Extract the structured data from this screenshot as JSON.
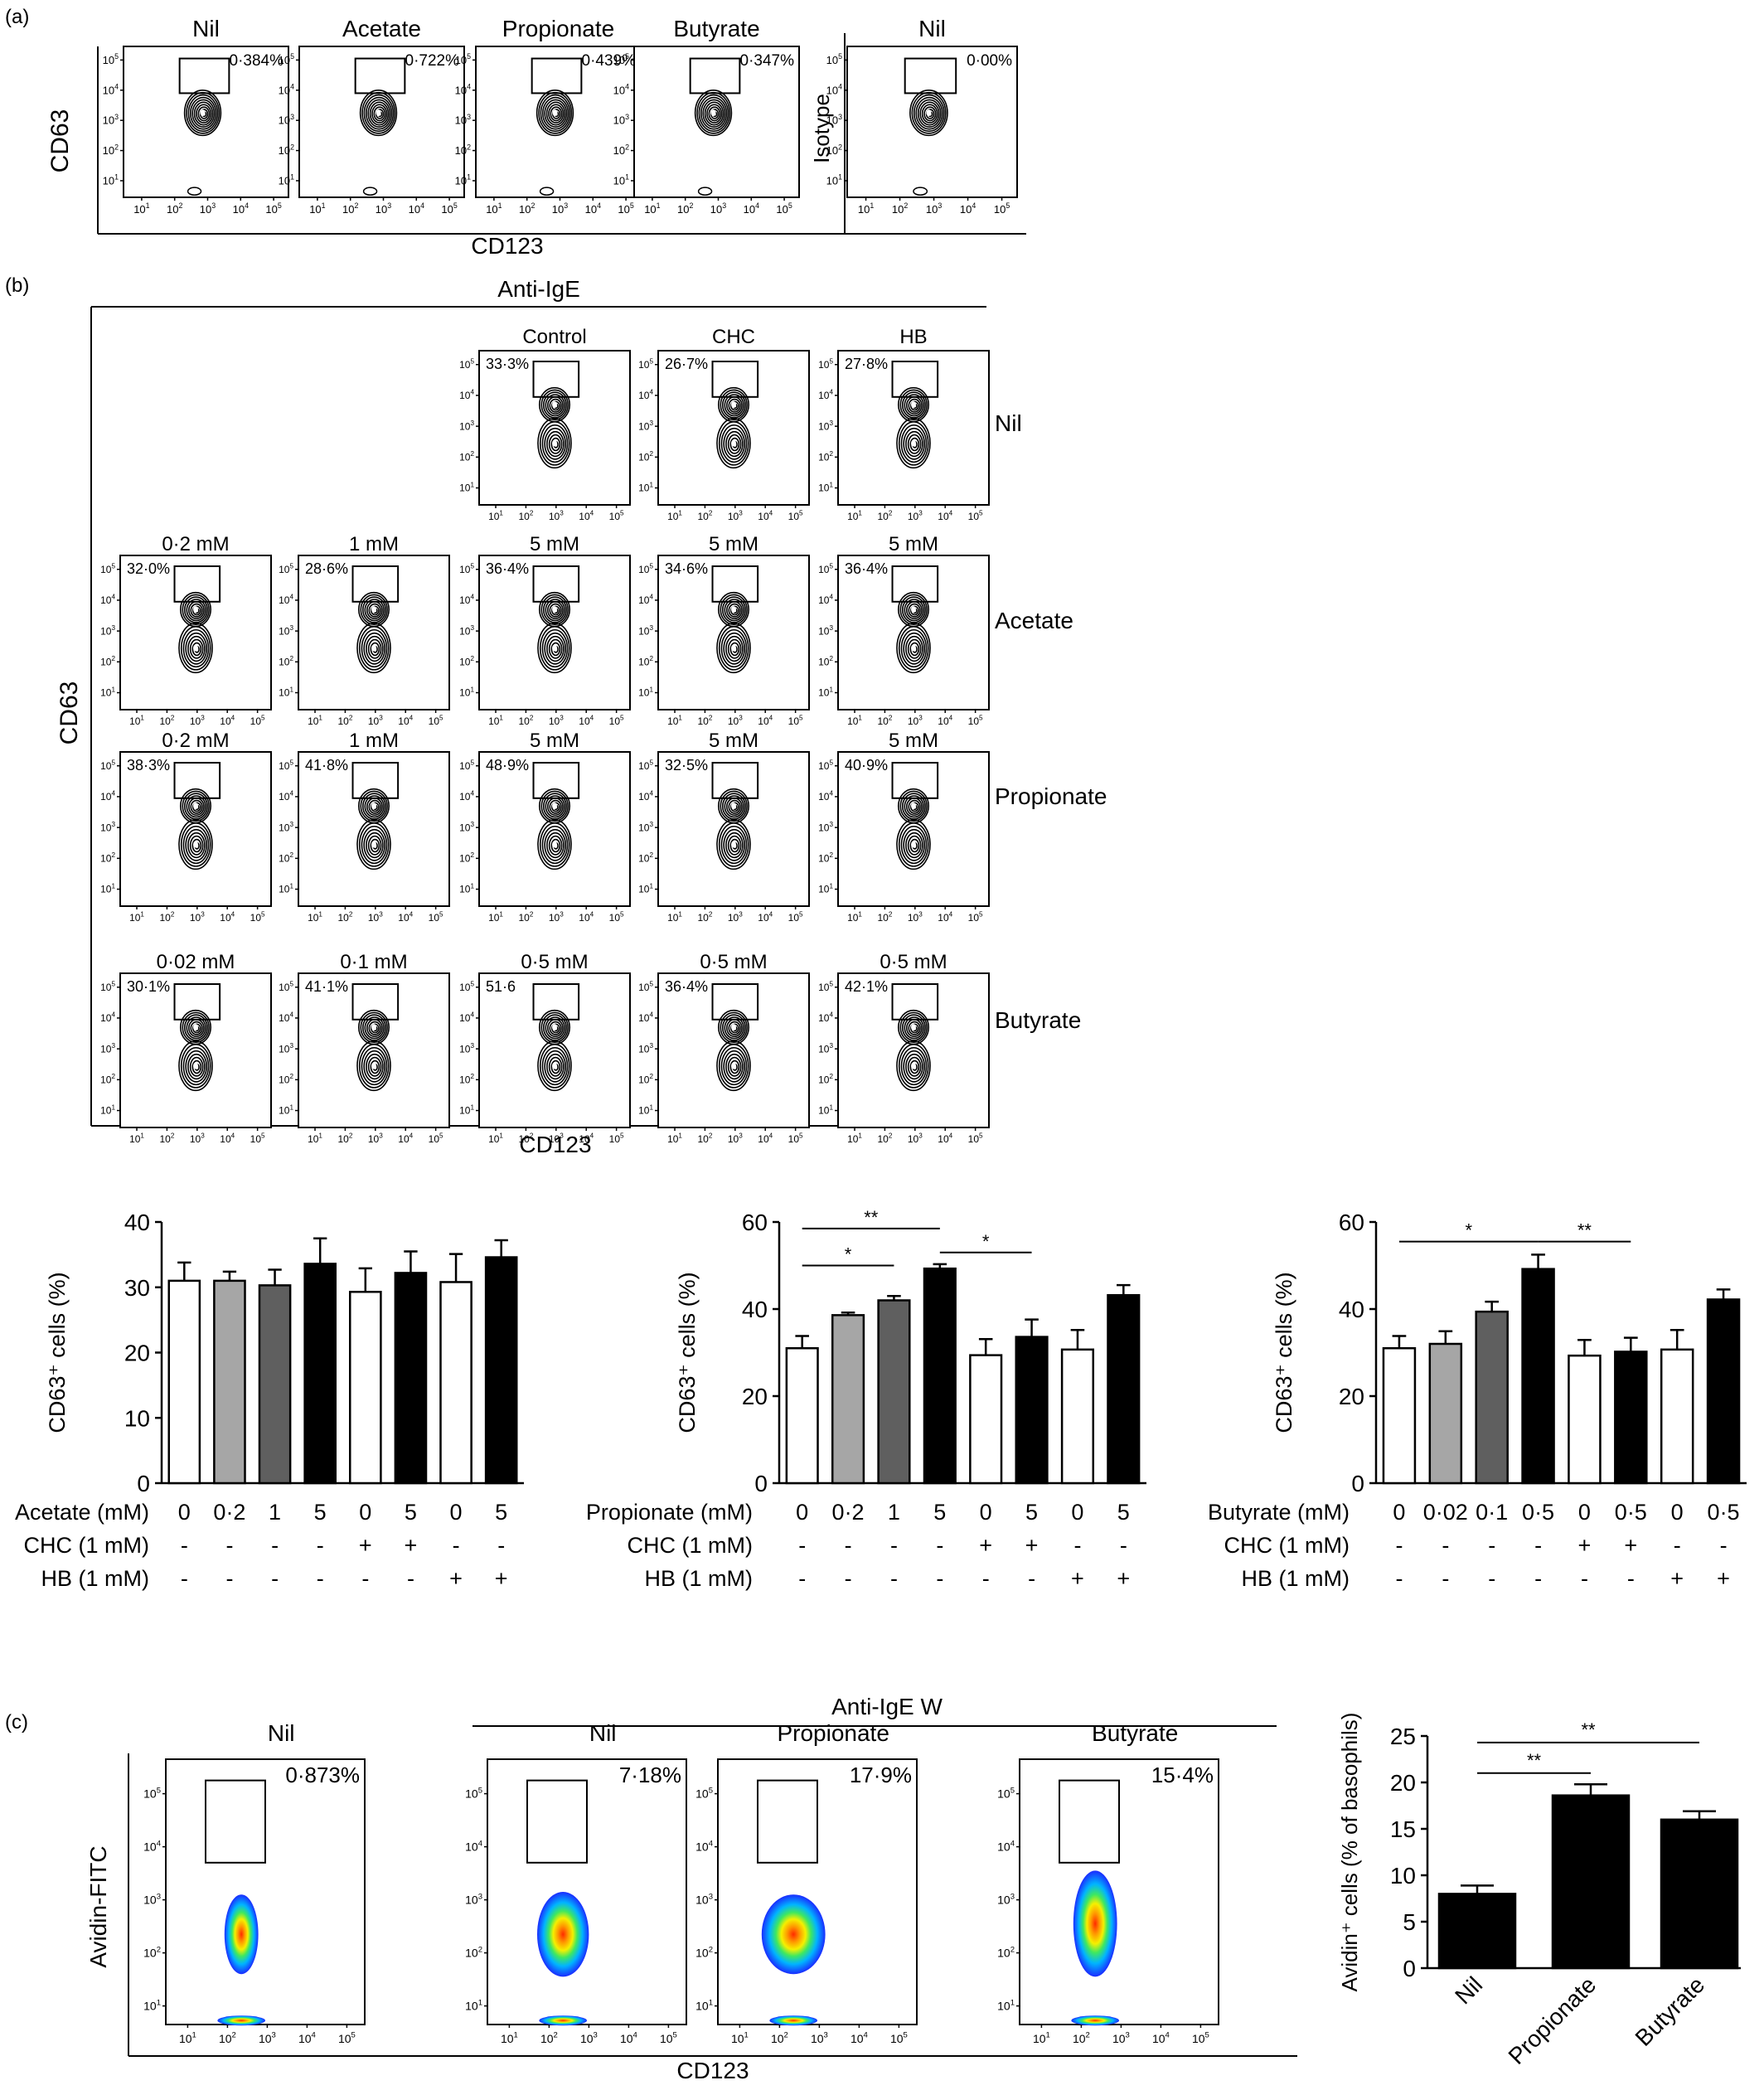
{
  "panel_labels": [
    "(a)",
    "(b)",
    "(c)"
  ],
  "flow_panel_a": {
    "plots": [
      {
        "title": "Nil",
        "gate_percent": "0·384%"
      },
      {
        "title": "Acetate",
        "gate_percent": "0·722%"
      },
      {
        "title": "Propionate",
        "gate_percent": "0·439%"
      },
      {
        "title": "Butyrate",
        "gate_percent": "0·347%"
      },
      {
        "title": "Nil",
        "gate_percent": "0·00%"
      }
    ],
    "ylabel": "CD63",
    "isotype_label": "Isotype",
    "xlabel": "CD123"
  },
  "flow_panel_b": {
    "header": "Anti-IgE",
    "column_titles": [
      "Control",
      "CHC",
      "HB"
    ],
    "row_labels": [
      "Nil",
      "Acetate",
      "Propionate",
      "Butyrate"
    ],
    "ylabel": "CD63",
    "xlabel": "CD123",
    "rows": [
      {
        "plots": [
          {
            "title": "",
            "gate_percent": "33·3%"
          },
          {
            "title": "",
            "gate_percent": "26·7%"
          },
          {
            "title": "",
            "gate_percent": "27·8%"
          }
        ]
      },
      {
        "plots": [
          {
            "title": "0·2 mM",
            "gate_percent": "32·0%"
          },
          {
            "title": "1 mM",
            "gate_percent": "28·6%"
          },
          {
            "title": "5 mM",
            "gate_percent": "36·4%"
          },
          {
            "title": "5 mM",
            "gate_percent": "34·6%"
          },
          {
            "title": "5 mM",
            "gate_percent": "36·4%"
          }
        ]
      },
      {
        "plots": [
          {
            "title": "0·2 mM",
            "gate_percent": "38·3%"
          },
          {
            "title": "1 mM",
            "gate_percent": "41·8%"
          },
          {
            "title": "5 mM",
            "gate_percent": "48·9%"
          },
          {
            "title": "5 mM",
            "gate_percent": "32·5%"
          },
          {
            "title": "5 mM",
            "gate_percent": "40·9%"
          }
        ]
      },
      {
        "plots": [
          {
            "title": "0·02 mM",
            "gate_percent": "30·1%"
          },
          {
            "title": "0·1 mM",
            "gate_percent": "41·1%"
          },
          {
            "title": "0·5 mM",
            "gate_percent": "51·6"
          },
          {
            "title": "0·5 mM",
            "gate_percent": "36·4%"
          },
          {
            "title": "0·5 mM",
            "gate_percent": "42·1%"
          }
        ]
      }
    ]
  },
  "flow_panel_c": {
    "header": "Anti-IgE W",
    "plots": [
      {
        "title": "Nil",
        "gate_percent": "0·873%"
      },
      {
        "title": "Nil",
        "gate_percent": "7·18%"
      },
      {
        "title": "Propionate",
        "gate_percent": "17·9%"
      },
      {
        "title": "Butyrate",
        "gate_percent": "15·4%"
      }
    ],
    "ylabel": "Avidin-FITC",
    "xlabel": "CD123"
  },
  "log_ticks": [
    "10",
    "10",
    "10",
    "10",
    "10"
  ],
  "log_exponents": [
    "1",
    "2",
    "3",
    "4",
    "5"
  ],
  "chart_data": [
    {
      "type": "bar",
      "ylabel": "CD63⁺ cells (%)",
      "ylim": [
        0,
        40
      ],
      "yticks": [
        "0",
        "10",
        "20",
        "30",
        "40"
      ],
      "row_labels": [
        "Acetate (mM)",
        "CHC (1 mM)",
        "HB (1 mM)"
      ],
      "categories": [
        "0",
        "0·2",
        "1",
        "5",
        "0",
        "5",
        "0",
        "5"
      ],
      "chc": [
        "-",
        "-",
        "-",
        "-",
        "+",
        "+",
        "-",
        "-"
      ],
      "hb": [
        "-",
        "-",
        "-",
        "-",
        "-",
        "-",
        "+",
        "+"
      ],
      "values": [
        31,
        31,
        30.3,
        33.6,
        29.3,
        32.2,
        30.8,
        34.6
      ],
      "errors": [
        2.8,
        1.4,
        2.4,
        3.9,
        3.6,
        3.3,
        4.3,
        2.6
      ],
      "colors": [
        "#ffffff",
        "#a6a6a6",
        "#5f5f5f",
        "#000000",
        "#ffffff",
        "#000000",
        "#ffffff",
        "#000000"
      ],
      "significance": []
    },
    {
      "type": "bar",
      "ylabel": "CD63⁺ cells (%)",
      "ylim": [
        0,
        60
      ],
      "yticks": [
        "0",
        "20",
        "40",
        "60"
      ],
      "row_labels": [
        "Propionate (mM)",
        "CHC (1 mM)",
        "HB (1 mM)"
      ],
      "categories": [
        "0",
        "0·2",
        "1",
        "5",
        "0",
        "5",
        "0",
        "5"
      ],
      "chc": [
        "-",
        "-",
        "-",
        "-",
        "+",
        "+",
        "-",
        "-"
      ],
      "hb": [
        "-",
        "-",
        "-",
        "-",
        "-",
        "-",
        "+",
        "+"
      ],
      "values": [
        31,
        38.6,
        42,
        49.3,
        29.4,
        33.6,
        30.7,
        43.2
      ],
      "errors": [
        2.8,
        0.6,
        1,
        1,
        3.7,
        4,
        4.5,
        2.3
      ],
      "colors": [
        "#ffffff",
        "#a6a6a6",
        "#5f5f5f",
        "#000000",
        "#ffffff",
        "#000000",
        "#ffffff",
        "#000000"
      ],
      "significance": [
        {
          "from": 0,
          "to": 3,
          "label": "**",
          "y": 58.5
        },
        {
          "from": 0,
          "to": 2,
          "label": "*",
          "y": 50
        },
        {
          "from": 3,
          "to": 5,
          "label": "*",
          "y": 53
        }
      ]
    },
    {
      "type": "bar",
      "ylabel": "CD63⁺ cells (%)",
      "ylim": [
        0,
        60
      ],
      "yticks": [
        "0",
        "20",
        "40",
        "60"
      ],
      "row_labels": [
        "Butyrate (mM)",
        "CHC (1 mM)",
        "HB (1 mM)"
      ],
      "categories": [
        "0",
        "0·02",
        "0·1",
        "0·5",
        "0",
        "0·5",
        "0",
        "0·5"
      ],
      "chc": [
        "-",
        "-",
        "-",
        "-",
        "+",
        "+",
        "-",
        "-"
      ],
      "hb": [
        "-",
        "-",
        "-",
        "-",
        "-",
        "-",
        "+",
        "+"
      ],
      "values": [
        31,
        32,
        39.4,
        49.2,
        29.3,
        30.2,
        30.7,
        42.2
      ],
      "errors": [
        2.8,
        2.9,
        2.3,
        3.3,
        3.6,
        3.2,
        4.5,
        2.3
      ],
      "colors": [
        "#ffffff",
        "#a6a6a6",
        "#5f5f5f",
        "#000000",
        "#ffffff",
        "#000000",
        "#ffffff",
        "#000000"
      ],
      "significance": [
        {
          "from": 0,
          "to": 3,
          "label": "*",
          "y": 55.5
        },
        {
          "from": 3,
          "to": 5,
          "label": "**",
          "y": 55.5
        }
      ]
    },
    {
      "type": "bar",
      "ylabel": "Avidin⁺ cells (% of basophils)",
      "ylim": [
        0,
        25
      ],
      "yticks": [
        "0",
        "5",
        "10",
        "15",
        "20",
        "25"
      ],
      "categories": [
        "Nil",
        "Propionate",
        "Butyrate"
      ],
      "values": [
        8,
        18.6,
        16
      ],
      "errors": [
        0.9,
        1.2,
        0.9
      ],
      "colors": [
        "#000000",
        "#000000",
        "#000000"
      ],
      "significance": [
        {
          "from": 0,
          "to": 1,
          "label": "**",
          "y": 21
        },
        {
          "from": 0,
          "to": 2,
          "label": "**",
          "y": 24.3
        }
      ]
    }
  ]
}
